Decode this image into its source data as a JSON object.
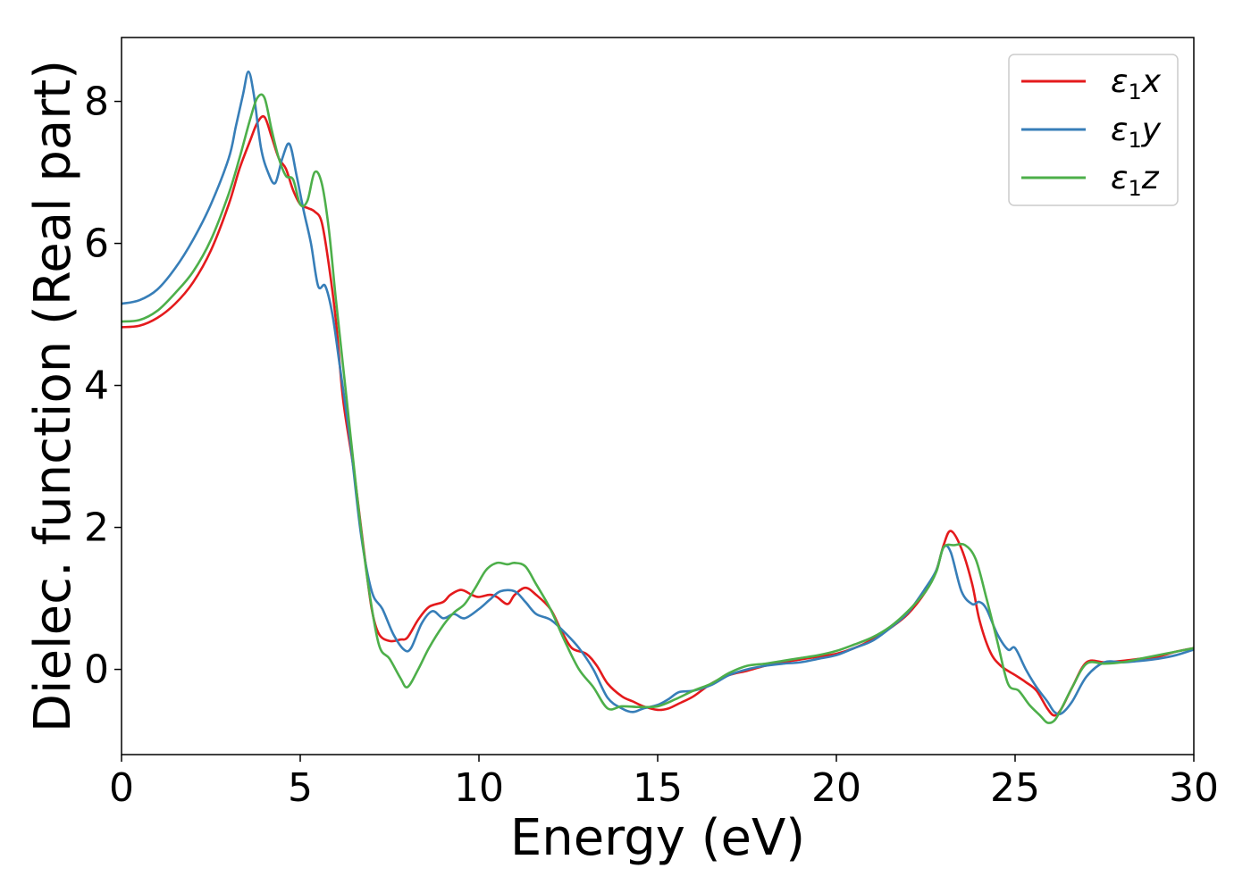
{
  "chart_data": {
    "type": "line",
    "title": "",
    "xlabel": "Energy (eV)",
    "ylabel": "Dielec. function (Real part)",
    "xlim": [
      0,
      30
    ],
    "ylim": [
      -1.2,
      8.9
    ],
    "xticks": [
      0,
      5,
      10,
      15,
      20,
      25,
      30
    ],
    "yticks": [
      0,
      2,
      4,
      6,
      8
    ],
    "grid": false,
    "legend_position": "top-right",
    "series": [
      {
        "name": "ε1x",
        "legend_base": "ε",
        "legend_sub": "1",
        "legend_suffix": "x",
        "color": "#e41a1c",
        "x": [
          0,
          0.5,
          1,
          1.5,
          2,
          2.5,
          3,
          3.3,
          3.6,
          3.8,
          4,
          4.2,
          4.4,
          4.6,
          4.8,
          5,
          5.2,
          5.4,
          5.6,
          5.8,
          6,
          6.2,
          6.5,
          6.8,
          7,
          7.2,
          7.5,
          7.8,
          8,
          8.3,
          8.6,
          9,
          9.2,
          9.5,
          9.8,
          10,
          10.3,
          10.5,
          10.8,
          11,
          11.3,
          11.6,
          12,
          12.3,
          12.6,
          13,
          13.3,
          13.6,
          14,
          14.3,
          14.6,
          15,
          15.3,
          15.6,
          16,
          16.5,
          17,
          17.5,
          18,
          18.5,
          19,
          19.5,
          20,
          20.5,
          21,
          21.5,
          22,
          22.5,
          22.8,
          23,
          23.2,
          23.5,
          23.8,
          24,
          24.3,
          24.6,
          25,
          25.3,
          25.6,
          25.9,
          26.1,
          26.3,
          26.6,
          27,
          27.5,
          28,
          28.5,
          29,
          29.5,
          30
        ],
        "y": [
          4.82,
          4.84,
          4.95,
          5.15,
          5.45,
          5.9,
          6.55,
          7.05,
          7.45,
          7.7,
          7.78,
          7.5,
          7.2,
          7.05,
          6.75,
          6.55,
          6.5,
          6.45,
          6.3,
          5.7,
          4.9,
          3.8,
          2.8,
          1.6,
          0.85,
          0.5,
          0.4,
          0.42,
          0.45,
          0.7,
          0.88,
          0.95,
          1.05,
          1.12,
          1.05,
          1.02,
          1.05,
          1.02,
          0.92,
          1.05,
          1.15,
          1.05,
          0.85,
          0.55,
          0.3,
          0.22,
          0.05,
          -0.2,
          -0.38,
          -0.45,
          -0.52,
          -0.57,
          -0.55,
          -0.48,
          -0.38,
          -0.2,
          -0.08,
          -0.02,
          0.05,
          0.1,
          0.14,
          0.18,
          0.22,
          0.3,
          0.42,
          0.58,
          0.78,
          1.1,
          1.4,
          1.75,
          1.95,
          1.7,
          1.2,
          0.7,
          0.25,
          0.05,
          -0.08,
          -0.18,
          -0.3,
          -0.55,
          -0.65,
          -0.55,
          -0.25,
          0.1,
          0.1,
          0.12,
          0.15,
          0.18,
          0.25,
          0.3
        ]
      },
      {
        "name": "ε1y",
        "legend_base": "ε",
        "legend_sub": "1",
        "legend_suffix": "y",
        "color": "#377eb8",
        "x": [
          0,
          0.5,
          1,
          1.5,
          2,
          2.5,
          3,
          3.2,
          3.4,
          3.55,
          3.7,
          3.9,
          4.1,
          4.3,
          4.5,
          4.7,
          4.9,
          5.1,
          5.3,
          5.5,
          5.7,
          5.9,
          6.1,
          6.4,
          6.7,
          7,
          7.3,
          7.6,
          7.9,
          8.1,
          8.4,
          8.7,
          9,
          9.3,
          9.6,
          10,
          10.3,
          10.6,
          11,
          11.3,
          11.6,
          12,
          12.4,
          12.8,
          13.2,
          13.6,
          14,
          14.3,
          14.6,
          15,
          15.3,
          15.6,
          16,
          16.5,
          17,
          17.5,
          18,
          18.5,
          19,
          19.5,
          20,
          20.5,
          21,
          21.5,
          22,
          22.5,
          22.8,
          23,
          23.2,
          23.5,
          23.8,
          24,
          24.2,
          24.5,
          24.8,
          25,
          25.3,
          25.6,
          25.9,
          26.1,
          26.3,
          26.6,
          27,
          27.5,
          28,
          28.5,
          29,
          29.5,
          30
        ],
        "y": [
          5.15,
          5.2,
          5.35,
          5.65,
          6.05,
          6.55,
          7.2,
          7.65,
          8.1,
          8.42,
          8.1,
          7.35,
          7.0,
          6.85,
          7.2,
          7.4,
          6.95,
          6.45,
          6.0,
          5.4,
          5.4,
          5.0,
          4.3,
          3.2,
          1.9,
          1.1,
          0.85,
          0.5,
          0.28,
          0.3,
          0.65,
          0.82,
          0.72,
          0.78,
          0.72,
          0.85,
          0.98,
          1.1,
          1.1,
          0.95,
          0.78,
          0.7,
          0.52,
          0.3,
          0.0,
          -0.4,
          -0.55,
          -0.6,
          -0.55,
          -0.5,
          -0.42,
          -0.32,
          -0.3,
          -0.22,
          -0.08,
          0.0,
          0.05,
          0.08,
          0.1,
          0.15,
          0.2,
          0.3,
          0.4,
          0.58,
          0.8,
          1.15,
          1.4,
          1.72,
          1.65,
          1.1,
          0.92,
          0.95,
          0.85,
          0.5,
          0.28,
          0.3,
          0.0,
          -0.25,
          -0.45,
          -0.6,
          -0.62,
          -0.45,
          -0.1,
          0.1,
          0.1,
          0.12,
          0.15,
          0.2,
          0.28
        ]
      },
      {
        "name": "ε1z",
        "legend_base": "ε",
        "legend_sub": "1",
        "legend_suffix": "z",
        "color": "#4daf4a",
        "x": [
          0,
          0.5,
          1,
          1.5,
          2,
          2.5,
          3,
          3.3,
          3.6,
          3.8,
          4,
          4.2,
          4.4,
          4.6,
          4.8,
          5,
          5.2,
          5.4,
          5.6,
          5.8,
          6,
          6.3,
          6.6,
          6.9,
          7.2,
          7.5,
          7.8,
          8,
          8.3,
          8.6,
          9,
          9.3,
          9.6,
          9.9,
          10.2,
          10.5,
          10.8,
          11,
          11.3,
          11.6,
          12,
          12.4,
          12.8,
          13.2,
          13.6,
          14,
          14.5,
          15,
          15.5,
          16,
          16.5,
          17,
          17.5,
          18,
          18.5,
          19,
          19.5,
          20,
          20.5,
          21,
          21.5,
          22,
          22.5,
          22.8,
          23,
          23.3,
          23.6,
          23.9,
          24.2,
          24.5,
          24.8,
          25.1,
          25.4,
          25.7,
          25.9,
          26.1,
          26.3,
          26.6,
          27,
          27.5,
          28,
          28.5,
          29,
          29.5,
          30
        ],
        "y": [
          4.9,
          4.92,
          5.05,
          5.3,
          5.6,
          6.05,
          6.7,
          7.2,
          7.75,
          8.05,
          8.05,
          7.6,
          7.2,
          6.95,
          6.9,
          6.55,
          6.6,
          7.0,
          6.85,
          6.2,
          5.2,
          3.8,
          2.4,
          1.2,
          0.35,
          0.15,
          -0.12,
          -0.25,
          0.0,
          0.3,
          0.62,
          0.8,
          0.92,
          1.15,
          1.4,
          1.5,
          1.48,
          1.5,
          1.45,
          1.2,
          0.85,
          0.4,
          0.0,
          -0.25,
          -0.55,
          -0.52,
          -0.53,
          -0.52,
          -0.42,
          -0.3,
          -0.2,
          -0.05,
          0.05,
          0.08,
          0.12,
          0.16,
          0.2,
          0.26,
          0.35,
          0.45,
          0.6,
          0.82,
          1.1,
          1.38,
          1.72,
          1.75,
          1.75,
          1.55,
          1.0,
          0.4,
          -0.2,
          -0.3,
          -0.5,
          -0.65,
          -0.75,
          -0.72,
          -0.55,
          -0.25,
          0.08,
          0.08,
          0.1,
          0.15,
          0.2,
          0.25,
          0.3
        ]
      }
    ]
  }
}
